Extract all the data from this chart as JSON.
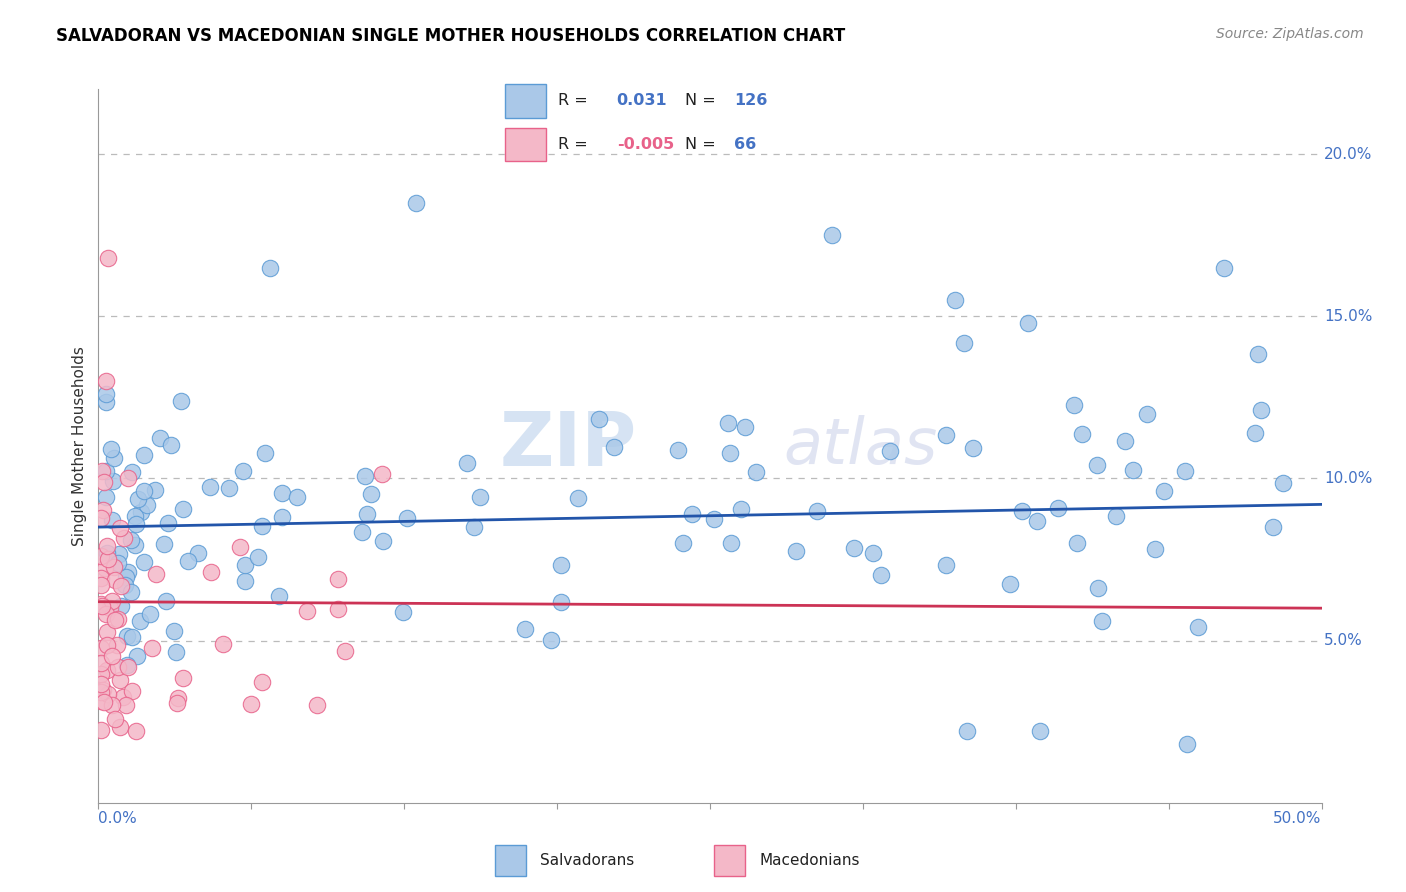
{
  "title": "SALVADORAN VS MACEDONIAN SINGLE MOTHER HOUSEHOLDS CORRELATION CHART",
  "source": "Source: ZipAtlas.com",
  "ylabel": "Single Mother Households",
  "xmin": 0.0,
  "xmax": 0.5,
  "ymin": 0.0,
  "ymax": 0.22,
  "yticks": [
    0.05,
    0.1,
    0.15,
    0.2
  ],
  "ytick_labels": [
    "5.0%",
    "10.0%",
    "15.0%",
    "20.0%"
  ],
  "watermark_zip": "ZIP",
  "watermark_atlas": "atlas",
  "legend_blue_r": "0.031",
  "legend_blue_n": "126",
  "legend_pink_r": "-0.005",
  "legend_pink_n": "66",
  "salvadoran_fill": "#aac8e8",
  "salvadoran_edge": "#5b9bd5",
  "macedonian_fill": "#f4b8c8",
  "macedonian_edge": "#e8628a",
  "trend_blue": "#2255aa",
  "trend_pink": "#cc3355",
  "background_color": "#ffffff",
  "grid_color": "#bbbbbb",
  "title_color": "#000000",
  "source_color": "#888888",
  "axis_color": "#4472c4",
  "ylabel_color": "#333333"
}
